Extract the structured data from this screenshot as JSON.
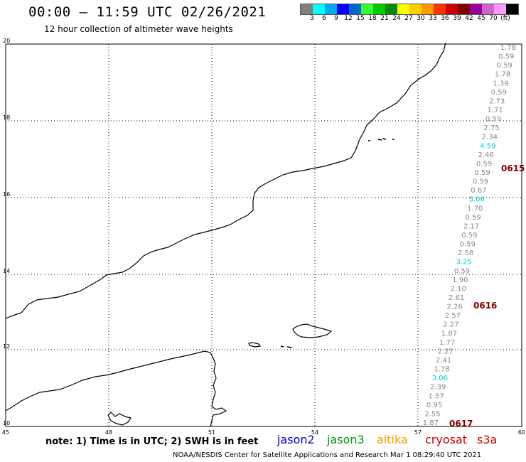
{
  "header": {
    "title": "00:00 — 11:59 UTC 02/26/2021",
    "subtitle": "12 hour collection of altimeter wave heights"
  },
  "color_scale": {
    "colors": [
      "#808080",
      "#00ffff",
      "#00aaee",
      "#0000ff",
      "#0066cc",
      "#33ff33",
      "#00cc00",
      "#008800",
      "#ffff00",
      "#ffcc00",
      "#ff9900",
      "#ff3300",
      "#cc0000",
      "#800000",
      "#990099",
      "#cc66cc",
      "#ff99ff",
      "#000000"
    ],
    "labels": [
      "3",
      "6",
      "9",
      "12",
      "15",
      "18",
      "21",
      "24",
      "27",
      "30",
      "33",
      "36",
      "39",
      "42",
      "45",
      "70",
      "(ft)"
    ]
  },
  "map": {
    "lon_ticks": [
      "45",
      "48",
      "51",
      "54",
      "57",
      "60"
    ],
    "lat_ticks": [
      "20",
      "18",
      "16",
      "14",
      "12",
      "10"
    ],
    "track_values": [
      {
        "v": "1.78",
        "c": "#888888"
      },
      {
        "v": "0.59",
        "c": "#888888"
      },
      {
        "v": "0.59",
        "c": "#888888"
      },
      {
        "v": "1.78",
        "c": "#888888"
      },
      {
        "v": "1.39",
        "c": "#888888"
      },
      {
        "v": "0.59",
        "c": "#888888"
      },
      {
        "v": "2.73",
        "c": "#888888"
      },
      {
        "v": "1.71",
        "c": "#888888"
      },
      {
        "v": "0.59",
        "c": "#888888"
      },
      {
        "v": "2.75",
        "c": "#888888"
      },
      {
        "v": "2.34",
        "c": "#888888"
      },
      {
        "v": "4.59",
        "c": "#00cccc"
      },
      {
        "v": "2.46",
        "c": "#888888"
      },
      {
        "v": "0.59",
        "c": "#888888"
      },
      {
        "v": "0.59",
        "c": "#888888"
      },
      {
        "v": "0.59",
        "c": "#888888"
      },
      {
        "v": "0.67",
        "c": "#888888"
      },
      {
        "v": "5.06",
        "c": "#00cccc"
      },
      {
        "v": "1.70",
        "c": "#888888"
      },
      {
        "v": "0.59",
        "c": "#888888"
      },
      {
        "v": "2.17",
        "c": "#888888"
      },
      {
        "v": "0.59",
        "c": "#888888"
      },
      {
        "v": "0.59",
        "c": "#888888"
      },
      {
        "v": "2.58",
        "c": "#888888"
      },
      {
        "v": "3.25",
        "c": "#00cccc"
      },
      {
        "v": "0.59",
        "c": "#888888"
      },
      {
        "v": "1.90",
        "c": "#888888"
      },
      {
        "v": "2.10",
        "c": "#888888"
      },
      {
        "v": "2.61",
        "c": "#888888"
      },
      {
        "v": "2.26",
        "c": "#888888"
      },
      {
        "v": "2.57",
        "c": "#888888"
      },
      {
        "v": "2.27",
        "c": "#888888"
      },
      {
        "v": "1.87",
        "c": "#888888"
      },
      {
        "v": "1.77",
        "c": "#888888"
      },
      {
        "v": "2.27",
        "c": "#888888"
      },
      {
        "v": "2.41",
        "c": "#888888"
      },
      {
        "v": "1.78",
        "c": "#888888"
      },
      {
        "v": "3.06",
        "c": "#00cccc"
      },
      {
        "v": "2.39",
        "c": "#888888"
      },
      {
        "v": "1.57",
        "c": "#888888"
      },
      {
        "v": "0.95",
        "c": "#888888"
      },
      {
        "v": "2.55",
        "c": "#888888"
      },
      {
        "v": "1.87",
        "c": "#888888"
      }
    ],
    "pass_times": [
      {
        "t": "0615",
        "color": "#800000"
      },
      {
        "t": "0616",
        "color": "#800000"
      },
      {
        "t": "0617",
        "color": "#800000"
      }
    ]
  },
  "footer": {
    "note": "note: 1) Time is in UTC; 2) SWH is in feet",
    "satellites": [
      {
        "name": "jason2",
        "color": "#0000cc"
      },
      {
        "name": "jason3",
        "color": "#009900"
      },
      {
        "name": "altika",
        "color": "#ff9900"
      },
      {
        "name": "cryosat",
        "color": "#cc0000"
      },
      {
        "name": "s3a",
        "color": "#cc0000"
      }
    ],
    "credit": "NOAA/NESDIS Center for Satellite Applications and Research    Mar  1 08:29:40 UTC 2021"
  }
}
